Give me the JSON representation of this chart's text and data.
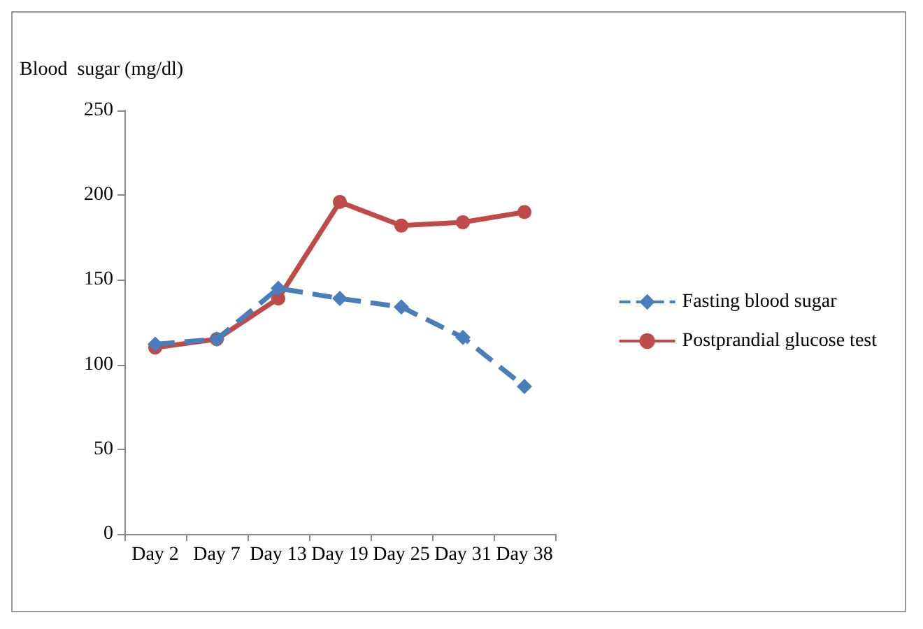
{
  "chart_data": {
    "type": "line",
    "ylabel": "Blood  sugar (mg/dl)",
    "categories": [
      "Day 2",
      "Day 7",
      "Day 13",
      "Day 19",
      "Day 25",
      "Day 31",
      "Day 38"
    ],
    "series": [
      {
        "name": "Fasting blood sugar",
        "color": "#4a7ebb",
        "values": [
          112,
          115,
          145,
          139,
          134,
          116,
          87
        ],
        "line_style": "dashed",
        "marker": "diamond"
      },
      {
        "name": "Postprandial glucose test",
        "color": "#be4b48",
        "values": [
          110,
          115,
          139,
          196,
          182,
          184,
          190
        ],
        "line_style": "solid",
        "marker": "circle"
      }
    ],
    "ylim": [
      0,
      250
    ],
    "yticks": [
      0,
      50,
      100,
      150,
      200,
      250
    ],
    "grid": false,
    "legend": "right"
  }
}
